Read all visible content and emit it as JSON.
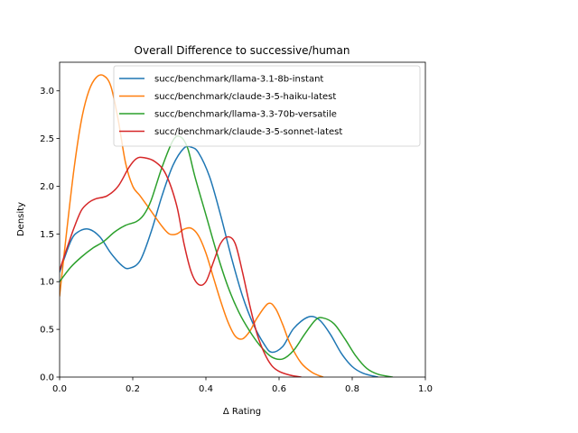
{
  "chart_data": {
    "type": "line",
    "title": "Overall Difference to successive/human",
    "xlabel": "Δ Rating",
    "ylabel": "Density",
    "xlim": [
      0.0,
      1.0
    ],
    "ylim": [
      0.0,
      3.3
    ],
    "xticks": [
      0.0,
      0.2,
      0.4,
      0.6,
      0.8,
      1.0
    ],
    "xtick_labels": [
      "0.0",
      "0.2",
      "0.4",
      "0.6",
      "0.8",
      "1.0"
    ],
    "yticks": [
      0.0,
      0.5,
      1.0,
      1.5,
      2.0,
      2.5,
      3.0
    ],
    "ytick_labels": [
      "0.0",
      "0.5",
      "1.0",
      "1.5",
      "2.0",
      "2.5",
      "3.0"
    ],
    "grid": false,
    "legend_position": "upper-right",
    "series": [
      {
        "name": "succ/benchmark/llama-3.1-8b-instant",
        "color": "#1f77b4",
        "x": [
          0.0,
          0.03,
          0.05,
          0.08,
          0.11,
          0.14,
          0.17,
          0.19,
          0.22,
          0.25,
          0.28,
          0.31,
          0.34,
          0.36,
          0.38,
          0.41,
          0.44,
          0.47,
          0.5,
          0.53,
          0.56,
          0.58,
          0.61,
          0.64,
          0.68,
          0.71,
          0.74,
          0.77,
          0.8,
          0.83,
          0.87
        ],
        "y": [
          1.1,
          1.42,
          1.52,
          1.55,
          1.47,
          1.3,
          1.17,
          1.14,
          1.22,
          1.52,
          1.9,
          2.22,
          2.4,
          2.41,
          2.35,
          2.1,
          1.7,
          1.25,
          0.85,
          0.55,
          0.34,
          0.26,
          0.32,
          0.51,
          0.63,
          0.6,
          0.45,
          0.25,
          0.11,
          0.04,
          0.0
        ]
      },
      {
        "name": "succ/benchmark/claude-3-5-haiku-latest",
        "color": "#ff7f0e",
        "x": [
          0.0,
          0.02,
          0.04,
          0.06,
          0.08,
          0.1,
          0.12,
          0.14,
          0.16,
          0.18,
          0.2,
          0.22,
          0.25,
          0.28,
          0.3,
          0.32,
          0.34,
          0.36,
          0.38,
          0.4,
          0.42,
          0.44,
          0.46,
          0.48,
          0.5,
          0.52,
          0.54,
          0.57,
          0.59,
          0.61,
          0.63,
          0.66,
          0.69,
          0.72
        ],
        "y": [
          0.85,
          1.55,
          2.2,
          2.7,
          3.0,
          3.14,
          3.16,
          3.05,
          2.7,
          2.25,
          2.0,
          1.9,
          1.74,
          1.58,
          1.5,
          1.5,
          1.55,
          1.56,
          1.48,
          1.3,
          1.05,
          0.8,
          0.58,
          0.43,
          0.4,
          0.48,
          0.62,
          0.77,
          0.72,
          0.55,
          0.35,
          0.15,
          0.05,
          0.0
        ]
      },
      {
        "name": "succ/benchmark/llama-3.3-70b-versatile",
        "color": "#2ca02c",
        "x": [
          0.0,
          0.03,
          0.06,
          0.09,
          0.12,
          0.15,
          0.18,
          0.21,
          0.23,
          0.25,
          0.28,
          0.31,
          0.33,
          0.35,
          0.37,
          0.4,
          0.43,
          0.46,
          0.49,
          0.52,
          0.55,
          0.58,
          0.61,
          0.64,
          0.67,
          0.7,
          0.72,
          0.75,
          0.78,
          0.81,
          0.84,
          0.87,
          0.91
        ],
        "y": [
          1.0,
          1.15,
          1.26,
          1.35,
          1.42,
          1.52,
          1.59,
          1.63,
          1.7,
          1.85,
          2.2,
          2.48,
          2.52,
          2.4,
          2.1,
          1.7,
          1.3,
          0.95,
          0.68,
          0.48,
          0.32,
          0.21,
          0.19,
          0.28,
          0.45,
          0.6,
          0.62,
          0.56,
          0.4,
          0.22,
          0.09,
          0.03,
          0.0
        ]
      },
      {
        "name": "succ/benchmark/claude-3-5-sonnet-latest",
        "color": "#d62728",
        "x": [
          0.0,
          0.02,
          0.04,
          0.06,
          0.08,
          0.1,
          0.13,
          0.16,
          0.19,
          0.21,
          0.23,
          0.26,
          0.29,
          0.32,
          0.34,
          0.36,
          0.38,
          0.4,
          0.42,
          0.44,
          0.46,
          0.48,
          0.5,
          0.52,
          0.54,
          0.56,
          0.58,
          0.6,
          0.63,
          0.66
        ],
        "y": [
          1.12,
          1.35,
          1.57,
          1.75,
          1.83,
          1.87,
          1.9,
          2.0,
          2.2,
          2.29,
          2.3,
          2.26,
          2.13,
          1.8,
          1.4,
          1.1,
          0.97,
          1.0,
          1.2,
          1.4,
          1.47,
          1.4,
          1.1,
          0.75,
          0.45,
          0.25,
          0.12,
          0.06,
          0.02,
          0.0
        ]
      }
    ]
  }
}
